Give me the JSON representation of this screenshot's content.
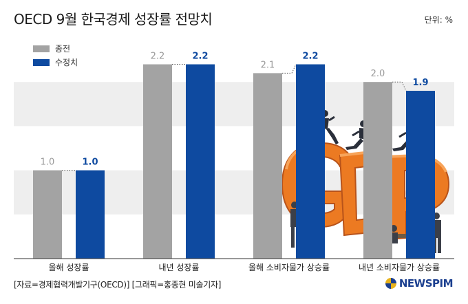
{
  "header": {
    "title": "OECD 9월 한국경제 성장률 전망치",
    "unit": "단위: %"
  },
  "footer": {
    "source": "[자료=경제협력개발기구(OECD)] [그래픽=홍종현 미술기자]",
    "logo_text": "NEWSPIM"
  },
  "colors": {
    "previous": "#a3a3a3",
    "revised": "#0e4aa0",
    "band": "#eeeeee",
    "accent_orange": "#e8731e"
  },
  "chart_data": {
    "type": "bar",
    "categories": [
      "올해 성장률",
      "내년 성장률",
      "올해 소비자물가 상승률",
      "내년 소비자물가 상승률"
    ],
    "series": [
      {
        "name": "종전",
        "values": [
          1.0,
          2.2,
          2.1,
          2.0
        ]
      },
      {
        "name": "수정치",
        "values": [
          1.0,
          2.2,
          2.2,
          1.9
        ]
      }
    ],
    "value_labels": [
      [
        "1.0",
        "2.2",
        "2.1",
        "2.0"
      ],
      [
        "1.0",
        "2.2",
        "2.2",
        "1.9"
      ]
    ],
    "ylim": [
      0,
      2.5
    ],
    "grid": "alternating horizontal bands",
    "legend": "top-left",
    "illustration": "orange GDP letters with businessmen"
  }
}
